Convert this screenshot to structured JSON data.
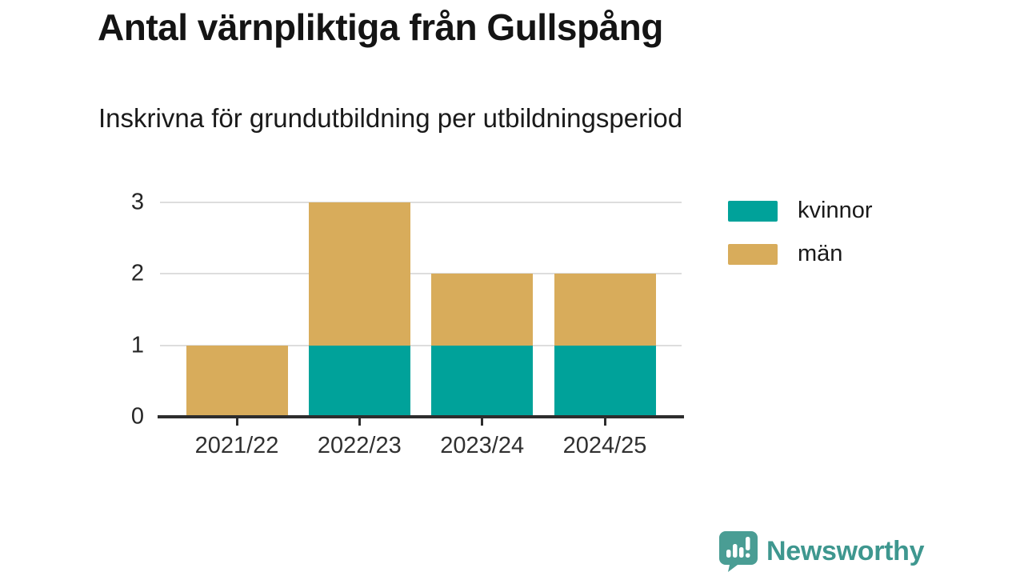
{
  "title": "Antal värnpliktiga från Gullspång",
  "subtitle": "Inskrivna för grundutbildning per utbildningsperiod",
  "colors": {
    "kvinnor": "#00A29A",
    "man": "#D8AC5B",
    "gridline": "#DDDDDD",
    "axis": "#2D2D2D",
    "text": "#1A1A1A",
    "brand_teal": "#3E978F"
  },
  "chart_data": {
    "type": "bar",
    "stacked": true,
    "title": "Antal värnpliktiga från Gullspång",
    "subtitle": "Inskrivna för grundutbildning per utbildningsperiod",
    "categories": [
      "2021/22",
      "2022/23",
      "2023/24",
      "2024/25"
    ],
    "series": [
      {
        "name": "kvinnor",
        "color": "#00A29A",
        "values": [
          0,
          1,
          1,
          1
        ]
      },
      {
        "name": "män",
        "color": "#D8AC5B",
        "values": [
          1,
          2,
          1,
          1
        ]
      }
    ],
    "totals": [
      1,
      3,
      2,
      2
    ],
    "xlabel": "",
    "ylabel": "",
    "yticks": [
      0,
      1,
      2,
      3
    ],
    "ylim": [
      0,
      3
    ],
    "grid": true,
    "legend_position": "right"
  },
  "footer": {
    "brand": "Newsworthy",
    "brand_icon": "speech-bubble-bar-chart-exclamation"
  }
}
